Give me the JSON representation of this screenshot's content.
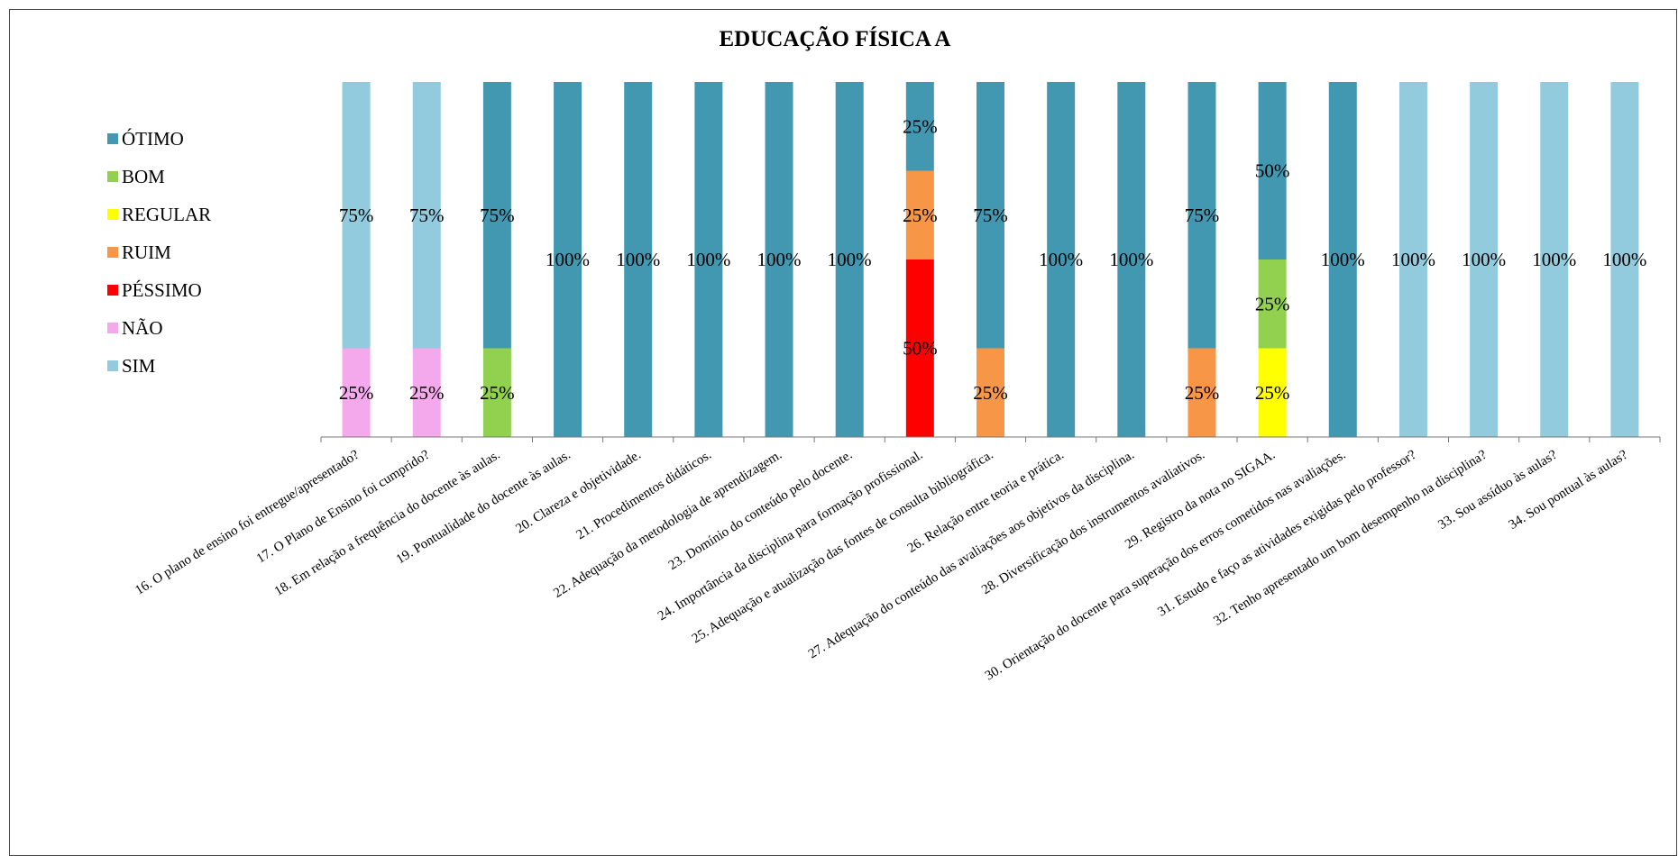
{
  "chart_data": {
    "type": "bar",
    "stacked": true,
    "title": "EDUCAÇÃO FÍSICA A",
    "legend_position": "left",
    "grid": false,
    "ylim": [
      0,
      100
    ],
    "categories": [
      "16. O plano de ensino foi entregue/apresentado?",
      "17.  O Plano de Ensino foi cumprido?",
      "18. Em relação a frequência do docente às aulas.",
      "19. Pontualidade do docente às aulas.",
      "20. Clareza e objetividade.",
      "21. Procedimentos didáticos.",
      "22. Adequação da metodologia de aprendizagem.",
      "23. Domínio do conteúdo pelo docente.",
      "24. Importância da disciplina para formação profissional.",
      "25. Adequação e atualização das fontes de consulta bibliográfica.",
      "26. Relação entre teoria e prática.",
      "27. Adequação do conteúdo das avaliações aos objetivos da disciplina.",
      "28. Diversificação dos instrumentos avaliativos.",
      "29. Registro da nota no SIGAA.",
      "30. Orientação do docente para superação dos erros cometidos nas avaliações.",
      "31. Estudo e faço as atividades exigidas pelo professor?",
      "32. Tenho apresentado um bom desempenho na disciplina?",
      "33. Sou assíduo às aulas?",
      "34. Sou pontual às aulas?"
    ],
    "series": [
      {
        "name": "SIM",
        "color": "#92CBDD",
        "values": [
          75,
          75,
          0,
          0,
          0,
          0,
          0,
          0,
          0,
          0,
          0,
          0,
          0,
          0,
          0,
          100,
          100,
          100,
          100
        ]
      },
      {
        "name": "NÃO",
        "color": "#F4A9EC",
        "values": [
          25,
          25,
          0,
          0,
          0,
          0,
          0,
          0,
          0,
          0,
          0,
          0,
          0,
          0,
          0,
          0,
          0,
          0,
          0
        ]
      },
      {
        "name": "PÉSSIMO",
        "color": "#FF0000",
        "values": [
          0,
          0,
          0,
          0,
          0,
          0,
          0,
          0,
          50,
          0,
          0,
          0,
          0,
          0,
          0,
          0,
          0,
          0,
          0
        ]
      },
      {
        "name": "RUIM",
        "color": "#F79646",
        "values": [
          0,
          0,
          0,
          0,
          0,
          0,
          0,
          0,
          25,
          25,
          0,
          0,
          25,
          0,
          0,
          0,
          0,
          0,
          0
        ]
      },
      {
        "name": "REGULAR",
        "color": "#FFFF00",
        "values": [
          0,
          0,
          0,
          0,
          0,
          0,
          0,
          0,
          0,
          0,
          0,
          0,
          0,
          25,
          0,
          0,
          0,
          0,
          0
        ]
      },
      {
        "name": "BOM",
        "color": "#92D050",
        "values": [
          0,
          0,
          25,
          0,
          0,
          0,
          0,
          0,
          0,
          0,
          0,
          0,
          0,
          25,
          0,
          0,
          0,
          0,
          0
        ]
      },
      {
        "name": "ÓTIMO",
        "color": "#4398B1",
        "values": [
          0,
          0,
          75,
          100,
          100,
          100,
          100,
          100,
          25,
          75,
          100,
          100,
          75,
          50,
          100,
          0,
          0,
          0,
          0
        ]
      }
    ],
    "legend_order": [
      "ÓTIMO",
      "BOM",
      "REGULAR",
      "RUIM",
      "PÉSSIMO",
      "NÃO",
      "SIM"
    ],
    "stack_order": [
      "NÃO",
      "PÉSSIMO",
      "RUIM",
      "REGULAR",
      "BOM",
      "ÓTIMO",
      "SIM"
    ]
  }
}
